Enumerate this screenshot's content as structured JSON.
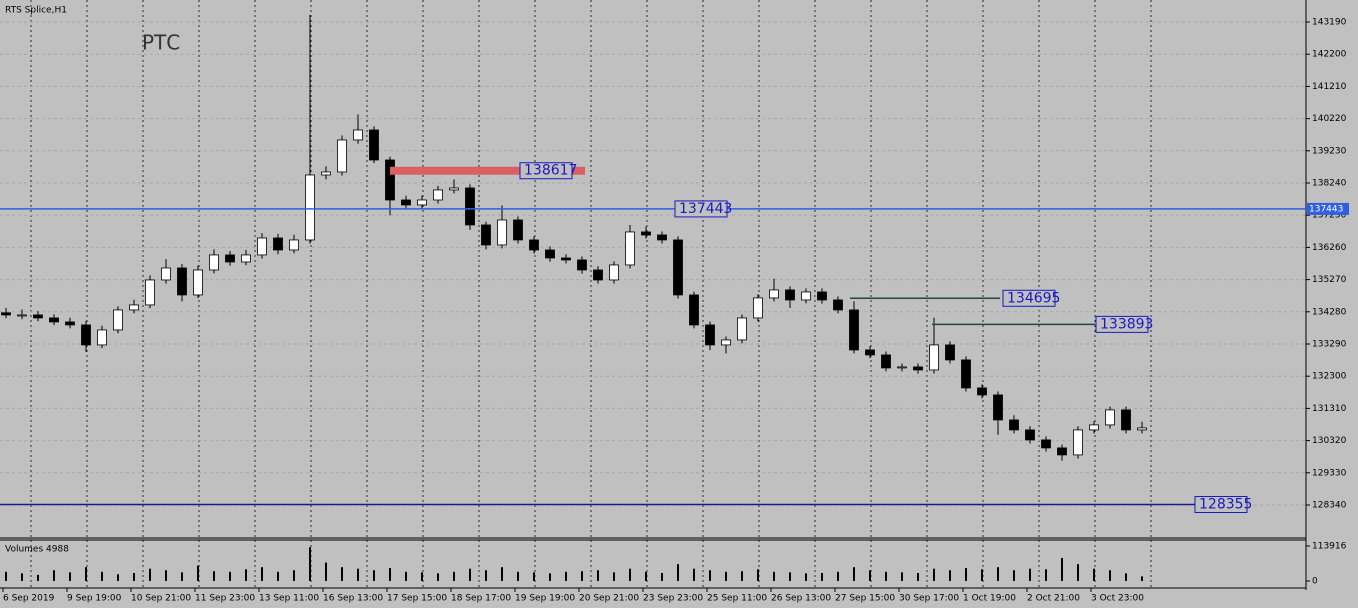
{
  "chart_data": {
    "type": "candlestick",
    "title": "RTS Splice,H1",
    "watermark": "РТС",
    "ylim": [
      127356,
      143805
    ],
    "yticks": [
      143190,
      142200,
      141210,
      140220,
      139230,
      138240,
      137250,
      136260,
      135270,
      134280,
      133290,
      132300,
      131310,
      130320,
      129330,
      128340
    ],
    "grid": true,
    "up_color": "#ffffff",
    "down_color": "#000000",
    "x_labels": [
      "6 Sep 2019",
      "9 Sep 19:00",
      "10 Sep 21:00",
      "11 Sep 23:00",
      "13 Sep 11:00",
      "16 Sep 13:00",
      "17 Sep 15:00",
      "18 Sep 17:00",
      "19 Sep 19:00",
      "20 Sep 21:00",
      "23 Sep 23:00",
      "25 Sep 11:00",
      "26 Sep 13:00",
      "27 Sep 15:00",
      "30 Sep 17:00",
      "1 Oct 19:00",
      "2 Oct 21:00",
      "3 Oct 23:00"
    ],
    "open": [
      134250,
      134183,
      134183,
      134091,
      133968,
      133876,
      133261,
      133722,
      134337,
      134491,
      135259,
      135628,
      134798,
      135566,
      136028,
      135812,
      136028,
      136550,
      136181,
      136489,
      138487,
      138579,
      139563,
      139870,
      138948,
      137718,
      137565,
      137718,
      138026,
      138087,
      136950,
      136335,
      137103,
      136489,
      136181,
      135935,
      135874,
      135566,
      135259,
      135720,
      136735,
      136642,
      136489,
      134798,
      133876,
      133261,
      133415,
      134091,
      134706,
      134952,
      134644,
      134890,
      134644,
      134337,
      133107,
      132954,
      132554,
      132585,
      132492,
      133261,
      132800,
      131939,
      131724,
      130955,
      130648,
      130341,
      130095,
      129880,
      130648,
      130802,
      131263,
      130648
    ],
    "high": [
      134400,
      134350,
      134300,
      134200,
      134100,
      134000,
      133850,
      134450,
      134650,
      135400,
      135900,
      135750,
      135700,
      136200,
      136150,
      136180,
      136700,
      136680,
      136650,
      143405,
      138750,
      139700,
      140350,
      139980,
      139050,
      137850,
      137850,
      138150,
      138350,
      138200,
      137050,
      137550,
      137210,
      136600,
      136290,
      136050,
      135980,
      135680,
      135830,
      136950,
      136900,
      136750,
      136600,
      134900,
      133980,
      133520,
      134200,
      134820,
      135300,
      135060,
      135000,
      135000,
      134750,
      134600,
      133220,
      133060,
      132690,
      132690,
      134100,
      133370,
      132910,
      132050,
      131830,
      131100,
      130760,
      130450,
      130200,
      130760,
      130910,
      131370,
      131370,
      130900
    ],
    "low": [
      134080,
      134050,
      133990,
      133870,
      133770,
      133050,
      133160,
      133620,
      134230,
      134390,
      135150,
      134600,
      134700,
      135460,
      135700,
      135710,
      135920,
      136050,
      136080,
      136380,
      138350,
      138470,
      139450,
      138850,
      137250,
      137450,
      137460,
      137610,
      137920,
      136800,
      136200,
      136230,
      136380,
      136070,
      135820,
      135770,
      135450,
      135150,
      135150,
      135610,
      136530,
      136380,
      134690,
      133770,
      133100,
      133000,
      133310,
      133980,
      134600,
      134400,
      134540,
      134530,
      134230,
      133000,
      132850,
      132450,
      132450,
      132380,
      132380,
      132690,
      131830,
      131620,
      130500,
      130540,
      130230,
      129980,
      129700,
      129770,
      130540,
      130690,
      130540,
      130540
    ],
    "close": [
      134183,
      134183,
      134091,
      133968,
      133876,
      133261,
      133722,
      134337,
      134491,
      135259,
      135628,
      134798,
      135566,
      136028,
      135812,
      136028,
      136550,
      136181,
      136489,
      138487,
      138579,
      139563,
      139870,
      138948,
      137718,
      137565,
      137718,
      138026,
      138087,
      136950,
      136335,
      137103,
      136489,
      136181,
      135935,
      135874,
      135566,
      135259,
      135720,
      136735,
      136642,
      136489,
      134798,
      133876,
      133261,
      133415,
      134091,
      134706,
      134952,
      134644,
      134890,
      134644,
      134337,
      133107,
      132954,
      132554,
      132585,
      132492,
      133261,
      132800,
      131939,
      131724,
      130955,
      130648,
      130341,
      130095,
      129880,
      130648,
      130802,
      131263,
      130648,
      130710
    ],
    "levels": [
      {
        "value": 138617,
        "color": "#d96060"
      },
      {
        "value": 137443,
        "color": "#3060e0"
      },
      {
        "value": 134695,
        "color": "#204848"
      },
      {
        "value": 133893,
        "color": "#204848"
      },
      {
        "value": 128355,
        "color": "#1a1a90"
      }
    ],
    "volume": {
      "label": "Volumes 4988",
      "color": "#000000",
      "ylim": [
        -19528,
        130190
      ],
      "yticks": [
        113916,
        0
      ],
      "values": [
        30000,
        25000,
        20000,
        35000,
        28000,
        45000,
        30000,
        22000,
        26000,
        40000,
        35000,
        28000,
        50000,
        32000,
        30000,
        38000,
        45000,
        30000,
        35000,
        110000,
        60000,
        45000,
        40000,
        35000,
        42000,
        30000,
        28000,
        25000,
        30000,
        40000,
        35000,
        45000,
        30000,
        28000,
        25000,
        30000,
        32000,
        35000,
        28000,
        40000,
        30000,
        26000,
        55000,
        40000,
        35000,
        30000,
        32000,
        38000,
        30000,
        28000,
        25000,
        26000,
        30000,
        45000,
        35000,
        30000,
        28000,
        26000,
        40000,
        35000,
        42000,
        38000,
        45000,
        35000,
        40000,
        38000,
        75000,
        55000,
        40000,
        35000,
        25000,
        15000
      ]
    }
  }
}
